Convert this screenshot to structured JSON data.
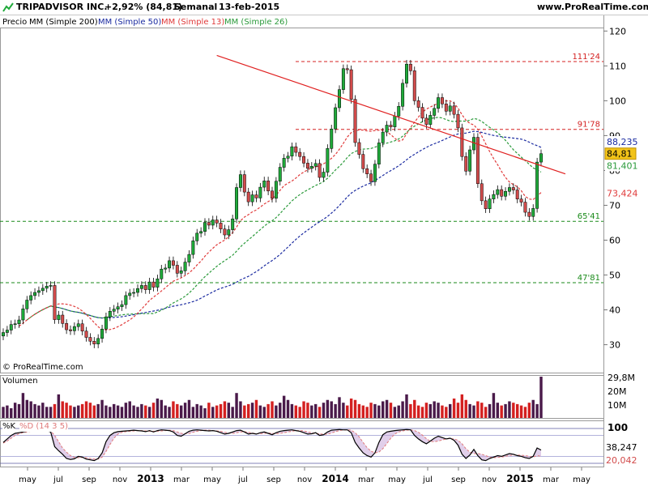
{
  "header": {
    "symbol": "TRIPADVISOR INC.",
    "change": "+2,92% (84,81)",
    "period": "Semanal",
    "date": "13-feb-2015",
    "site": "www.ProRealTime.com",
    "icon": "trend-arrow-icon"
  },
  "legend": {
    "price": "Precio",
    "mm200": "MM (Simple 200)",
    "mm50": "MM (Simple 50)",
    "mm13": "MM (Simple 13)",
    "mm26": "MM (Simple 26)"
  },
  "copyright": "© ProRealTime.com",
  "colors": {
    "up": "#1faa3a",
    "down": "#d24b4b",
    "mm50": "#1a2aa0",
    "mm13": "#e03a3a",
    "mm26": "#2a9a3a",
    "volume_high": "#4a1a4a"
  },
  "chart_data": [
    {
      "type": "candlestick",
      "title": "TRIPADVISOR INC.",
      "period": "Semanal",
      "x_tick_labels": [
        "may",
        "jul",
        "sep",
        "nov",
        "2013",
        "mar",
        "may",
        "jul",
        "sep",
        "nov",
        "2014",
        "mar",
        "may",
        "jul",
        "sep",
        "nov",
        "2015",
        "mar",
        "may"
      ],
      "y_ticks": [
        "120",
        "110",
        "100",
        "90",
        "80",
        "70",
        "60",
        "50",
        "40",
        "30"
      ],
      "ylim": [
        22,
        121
      ],
      "price_labels": {
        "last": "84,81",
        "mm50": "88,235",
        "mm26": "81,401",
        "mm13": "73,424"
      },
      "levels": [
        {
          "label": "111'24",
          "value": 111.24,
          "color": "#d42020"
        },
        {
          "label": "91'78",
          "value": 91.78,
          "color": "#d42020"
        },
        {
          "label": "65'41",
          "value": 65.41,
          "color": "#1a8a1a"
        },
        {
          "label": "47'81",
          "value": 47.81,
          "color": "#1a8a1a"
        }
      ],
      "trendline": {
        "from": [
          54,
          113
        ],
        "to": [
          149,
          79
        ]
      },
      "close": [
        33.5,
        34.2,
        35.8,
        36.0,
        37.1,
        40.3,
        42.8,
        44.1,
        45.0,
        45.5,
        46.2,
        46.8,
        47.0,
        37.2,
        38.5,
        36.1,
        34.3,
        34.0,
        35.2,
        36.0,
        33.9,
        32.1,
        31.0,
        30.2,
        31.8,
        34.5,
        38.0,
        39.6,
        40.2,
        40.9,
        41.5,
        44.1,
        44.8,
        45.0,
        46.1,
        47.0,
        45.8,
        48.0,
        46.5,
        48.9,
        51.7,
        52.0,
        54.1,
        52.8,
        50.5,
        51.2,
        53.7,
        55.9,
        59.8,
        62.0,
        62.5,
        65.1,
        64.3,
        65.8,
        64.9,
        63.2,
        61.5,
        63.0,
        66.1,
        75.1,
        78.8,
        73.8,
        71.0,
        73.0,
        72.1,
        75.2,
        77.0,
        74.1,
        72.0,
        76.9,
        80.9,
        83.5,
        84.1,
        86.8,
        85.2,
        84.0,
        82.1,
        80.6,
        81.2,
        82.0,
        78.0,
        79.5,
        86.3,
        91.9,
        98.0,
        103.2,
        109.2,
        108.9,
        100.4,
        88.0,
        84.6,
        80.5,
        79.0,
        76.8,
        81.8,
        87.9,
        91.0,
        93.0,
        92.5,
        95.6,
        98.4,
        105.0,
        110.5,
        108.6,
        100.0,
        98.1,
        95.0,
        93.2,
        95.8,
        97.8,
        100.9,
        99.1,
        97.0,
        98.5,
        96.1,
        92.2,
        84.0,
        79.8,
        85.9,
        89.5,
        76.2,
        71.3,
        69.0,
        71.8,
        73.1,
        74.5,
        72.6,
        74.0,
        75.1,
        74.4,
        71.8,
        70.9,
        68.0,
        66.8,
        69.1,
        82.4,
        84.81
      ],
      "volume_max": 29.8,
      "volume_ticks": [
        "29,8M",
        "20M",
        "10M"
      ],
      "volume_label": "Volumen",
      "volume": [
        8,
        9,
        7,
        11,
        10,
        18,
        13,
        12,
        10,
        9,
        11,
        8,
        8,
        10,
        17,
        12,
        11,
        9,
        8,
        9,
        10,
        12,
        11,
        9,
        10,
        13,
        9,
        8,
        10,
        9,
        8,
        11,
        12,
        9,
        8,
        10,
        9,
        8,
        11,
        14,
        13,
        9,
        8,
        12,
        10,
        9,
        11,
        13,
        8,
        10,
        9,
        7,
        11,
        8,
        9,
        10,
        12,
        11,
        8,
        18,
        12,
        9,
        10,
        11,
        13,
        9,
        8,
        10,
        12,
        9,
        11,
        16,
        13,
        10,
        9,
        8,
        12,
        11,
        9,
        10,
        8,
        11,
        13,
        12,
        10,
        15,
        11,
        9,
        14,
        13,
        10,
        9,
        8,
        11,
        10,
        9,
        12,
        13,
        11,
        8,
        9,
        12,
        17,
        10,
        13,
        9,
        8,
        11,
        10,
        12,
        11,
        9,
        8,
        10,
        14,
        11,
        17,
        13,
        10,
        9,
        12,
        11,
        8,
        10,
        18,
        11,
        9,
        10,
        12,
        11,
        10,
        9,
        8,
        11,
        13,
        10,
        29.8
      ],
      "stoch_label_k": "%K",
      "stoch_label_d": "%D (14 3 5)",
      "stoch_ticks": [
        "100",
        "38,247",
        "20,042"
      ],
      "stoch_k": [
        60,
        70,
        80,
        86,
        88,
        90,
        92,
        94,
        95,
        96,
        95,
        94,
        90,
        48,
        36,
        26,
        14,
        11,
        13,
        20,
        18,
        12,
        10,
        8,
        14,
        30,
        62,
        80,
        88,
        91,
        92,
        93,
        94,
        95,
        94,
        93,
        91,
        94,
        90,
        94,
        96,
        95,
        94,
        90,
        80,
        78,
        85,
        92,
        95,
        96,
        95,
        94,
        93,
        94,
        92,
        88,
        84,
        86,
        90,
        94,
        95,
        90,
        84,
        86,
        84,
        88,
        90,
        86,
        82,
        88,
        92,
        94,
        95,
        96,
        94,
        92,
        88,
        84,
        85,
        88,
        80,
        82,
        90,
        95,
        96,
        97,
        96,
        96,
        88,
        60,
        44,
        30,
        22,
        18,
        30,
        60,
        82,
        90,
        92,
        94,
        95,
        96,
        97,
        96,
        80,
        70,
        62,
        56,
        64,
        72,
        78,
        74,
        70,
        72,
        66,
        52,
        26,
        14,
        24,
        40,
        22,
        10,
        8,
        14,
        18,
        22,
        20,
        24,
        28,
        26,
        22,
        20,
        16,
        14,
        20,
        44,
        38.247
      ],
      "stoch_d": [
        58,
        64,
        72,
        80,
        85,
        88,
        90,
        92,
        93,
        95,
        95,
        95,
        93,
        80,
        62,
        44,
        32,
        22,
        17,
        16,
        17,
        16,
        14,
        12,
        12,
        18,
        34,
        54,
        72,
        84,
        89,
        91,
        92,
        93,
        94,
        94,
        93,
        92,
        92,
        92,
        93,
        94,
        95,
        94,
        90,
        86,
        85,
        86,
        89,
        92,
        94,
        95,
        95,
        94,
        93,
        92,
        89,
        87,
        86,
        88,
        90,
        91,
        89,
        87,
        85,
        85,
        86,
        87,
        86,
        85,
        86,
        88,
        90,
        92,
        94,
        94,
        93,
        90,
        88,
        86,
        85,
        83,
        84,
        87,
        91,
        94,
        96,
        96,
        95,
        88,
        76,
        60,
        45,
        35,
        30,
        32,
        42,
        57,
        72,
        84,
        90,
        93,
        95,
        96,
        94,
        89,
        81,
        71,
        63,
        62,
        64,
        67,
        70,
        71,
        70,
        66,
        56,
        42,
        32,
        28,
        28,
        26,
        22,
        18,
        16,
        17,
        18,
        20,
        22,
        24,
        24,
        23,
        22,
        20,
        18,
        22,
        20.042
      ]
    }
  ]
}
